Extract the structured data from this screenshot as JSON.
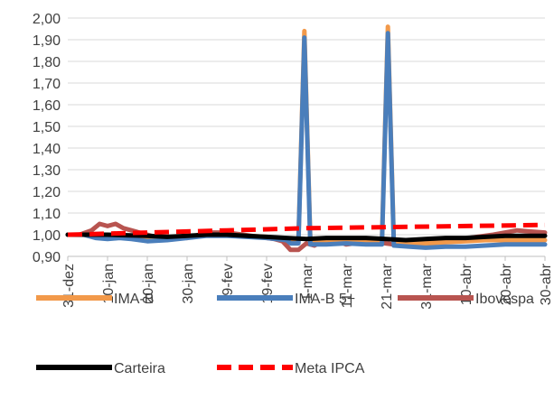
{
  "chart_data": {
    "type": "line",
    "title": "",
    "xlabel": "",
    "ylabel": "",
    "ylim": [
      0.9,
      2.0
    ],
    "y_ticks": [
      "0,90",
      "1,00",
      "1,10",
      "1,20",
      "1,30",
      "1,40",
      "1,50",
      "1,60",
      "1,70",
      "1,80",
      "1,90",
      "2,00"
    ],
    "x_ticks": [
      "31-dez",
      "10-jan",
      "20-jan",
      "30-jan",
      "9-fev",
      "19-fev",
      "1-mar",
      "11-mar",
      "21-mar",
      "31-mar",
      "10-abr",
      "20-abr",
      "30-abr"
    ],
    "x_domain_days": [
      0,
      120
    ],
    "grid": "horizontal",
    "legend_position": "bottom",
    "series": [
      {
        "name": "IMA-B",
        "color": "#F2994A",
        "style": "solid",
        "points": [
          [
            0,
            1.0
          ],
          [
            5,
            1.0
          ],
          [
            10,
            0.99
          ],
          [
            15,
            0.99
          ],
          [
            20,
            0.98
          ],
          [
            25,
            0.98
          ],
          [
            30,
            0.99
          ],
          [
            35,
            1.0
          ],
          [
            40,
            1.0
          ],
          [
            45,
            0.995
          ],
          [
            50,
            0.99
          ],
          [
            55,
            0.98
          ],
          [
            56,
            0.97
          ],
          [
            58,
            0.97
          ],
          [
            59.5,
            1.94
          ],
          [
            61,
            0.97
          ],
          [
            65,
            0.975
          ],
          [
            70,
            0.975
          ],
          [
            75,
            0.97
          ],
          [
            79,
            0.97
          ],
          [
            80.5,
            1.96
          ],
          [
            82,
            0.96
          ],
          [
            86,
            0.96
          ],
          [
            90,
            0.96
          ],
          [
            95,
            0.965
          ],
          [
            100,
            0.97
          ],
          [
            105,
            0.975
          ],
          [
            110,
            0.975
          ],
          [
            115,
            0.975
          ],
          [
            120,
            0.975
          ]
        ]
      },
      {
        "name": "IMA-B 5+",
        "color": "#4A7EBB",
        "style": "solid",
        "points": [
          [
            0,
            1.0
          ],
          [
            4,
            1.0
          ],
          [
            7,
            0.985
          ],
          [
            10,
            0.98
          ],
          [
            13,
            0.985
          ],
          [
            16,
            0.98
          ],
          [
            20,
            0.97
          ],
          [
            25,
            0.975
          ],
          [
            30,
            0.985
          ],
          [
            35,
            0.995
          ],
          [
            40,
            0.995
          ],
          [
            45,
            0.99
          ],
          [
            50,
            0.985
          ],
          [
            55,
            0.975
          ],
          [
            56,
            0.96
          ],
          [
            58,
            0.96
          ],
          [
            59.5,
            1.91
          ],
          [
            61,
            0.955
          ],
          [
            65,
            0.955
          ],
          [
            70,
            0.96
          ],
          [
            75,
            0.955
          ],
          [
            79,
            0.955
          ],
          [
            80.5,
            1.93
          ],
          [
            82,
            0.95
          ],
          [
            86,
            0.945
          ],
          [
            90,
            0.94
          ],
          [
            95,
            0.945
          ],
          [
            100,
            0.945
          ],
          [
            105,
            0.95
          ],
          [
            110,
            0.955
          ],
          [
            115,
            0.955
          ],
          [
            120,
            0.955
          ]
        ]
      },
      {
        "name": "Ibovespa",
        "color": "#B85450",
        "style": "solid",
        "points": [
          [
            0,
            1.0
          ],
          [
            3,
            1.0
          ],
          [
            6,
            1.02
          ],
          [
            8,
            1.05
          ],
          [
            10,
            1.04
          ],
          [
            12,
            1.05
          ],
          [
            14,
            1.03
          ],
          [
            16,
            1.02
          ],
          [
            18,
            1.01
          ],
          [
            20,
            1.0
          ],
          [
            22,
            0.99
          ],
          [
            25,
            0.985
          ],
          [
            28,
            0.99
          ],
          [
            30,
            0.985
          ],
          [
            33,
            1.0
          ],
          [
            36,
            1.01
          ],
          [
            40,
            1.01
          ],
          [
            44,
            1.0
          ],
          [
            48,
            0.99
          ],
          [
            52,
            0.98
          ],
          [
            54,
            0.97
          ],
          [
            56,
            0.93
          ],
          [
            58,
            0.93
          ],
          [
            60,
            0.96
          ],
          [
            62,
            0.95
          ],
          [
            64,
            0.97
          ],
          [
            66,
            0.96
          ],
          [
            68,
            0.97
          ],
          [
            70,
            0.955
          ],
          [
            72,
            0.96
          ],
          [
            74,
            0.97
          ],
          [
            76,
            0.975
          ],
          [
            78,
            0.965
          ],
          [
            80,
            0.96
          ],
          [
            82,
            0.955
          ],
          [
            85,
            0.95
          ],
          [
            88,
            0.955
          ],
          [
            91,
            0.96
          ],
          [
            95,
            0.97
          ],
          [
            99,
            0.98
          ],
          [
            103,
            0.99
          ],
          [
            107,
            1.0
          ],
          [
            110,
            1.01
          ],
          [
            113,
            1.02
          ],
          [
            116,
            1.015
          ],
          [
            120,
            1.01
          ]
        ]
      },
      {
        "name": "Carteira",
        "color": "#000000",
        "style": "solid",
        "points": [
          [
            0,
            1.0
          ],
          [
            10,
            1.0
          ],
          [
            20,
            0.995
          ],
          [
            25,
            0.99
          ],
          [
            30,
            0.995
          ],
          [
            35,
            1.0
          ],
          [
            40,
            1.0
          ],
          [
            45,
            0.995
          ],
          [
            50,
            0.99
          ],
          [
            55,
            0.985
          ],
          [
            60,
            0.98
          ],
          [
            65,
            0.985
          ],
          [
            70,
            0.985
          ],
          [
            75,
            0.985
          ],
          [
            80,
            0.98
          ],
          [
            85,
            0.975
          ],
          [
            90,
            0.98
          ],
          [
            95,
            0.985
          ],
          [
            100,
            0.985
          ],
          [
            105,
            0.99
          ],
          [
            110,
            0.995
          ],
          [
            115,
            0.995
          ],
          [
            120,
            0.995
          ]
        ]
      },
      {
        "name": "Meta IPCA",
        "color": "#FF0000",
        "style": "dashed",
        "points": [
          [
            0,
            1.0
          ],
          [
            20,
            1.01
          ],
          [
            40,
            1.02
          ],
          [
            60,
            1.03
          ],
          [
            80,
            1.035
          ],
          [
            100,
            1.04
          ],
          [
            120,
            1.045
          ]
        ]
      }
    ]
  }
}
